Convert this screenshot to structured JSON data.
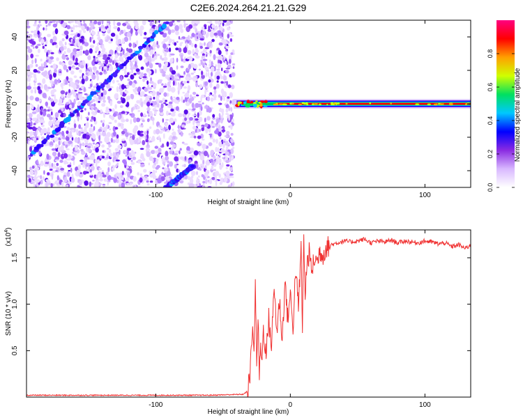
{
  "title": "C2E6.2024.264.21.21.G29",
  "colors": {
    "axis": "#000000",
    "snr_line": "#f03030",
    "spectrum_bg": "#ffffff"
  },
  "colorbar": {
    "label": "Normalized spectral amplitude",
    "ticks": [
      "0.0",
      "0.2",
      "0.4",
      "0.6",
      "0.8"
    ],
    "tick_values": [
      0.0,
      0.2,
      0.4,
      0.6,
      0.8
    ],
    "range": [
      0,
      1
    ],
    "colormap": [
      "#ffffff",
      "#d8b8ff",
      "#8a2be2",
      "#0000ff",
      "#00c8ff",
      "#00e060",
      "#d0ff00",
      "#ffa000",
      "#ff0000",
      "#ff0080"
    ]
  },
  "chart_data": [
    {
      "type": "heatmap",
      "title": "C2E6.2024.264.21.21.G29",
      "xlabel": "Height of straight line (km)",
      "ylabel": "Frequency (Hz)",
      "xlim": [
        -196,
        134
      ],
      "ylim": [
        -50,
        50
      ],
      "xticks": [
        -100,
        0,
        100
      ],
      "yticks": [
        -40,
        -20,
        0,
        20,
        40
      ],
      "features": {
        "noise_region_x": [
          -196,
          -42
        ],
        "diagonal_tracks": [
          {
            "x": [
              -192,
              -92
            ],
            "y": [
              -30,
              48
            ]
          },
          {
            "x": [
              -92,
              -72
            ],
            "y": [
              -50,
              -37
            ]
          }
        ],
        "carrier_band": {
          "x": [
            -42,
            134
          ],
          "y": 0
        }
      }
    },
    {
      "type": "line",
      "xlabel": "Height of straight line (km)",
      "ylabel": "SNR (10 * v/v)",
      "scale_label": "(x10",
      "scale_exponent": "4",
      "xlim": [
        -196,
        134
      ],
      "ylim": [
        0,
        1.8
      ],
      "xticks": [
        -100,
        0,
        100
      ],
      "yticks": [
        0.5,
        1.0,
        1.5
      ],
      "ytick_labels": [
        "0.5",
        "1.0",
        "1.5"
      ],
      "series": [
        {
          "x": [
            -196,
            -150,
            -100,
            -60,
            -35,
            -32,
            -30,
            -28,
            -27,
            -26,
            -25,
            -24,
            -23,
            -22,
            -21,
            -20,
            -18,
            -16,
            -14,
            -12,
            -10,
            -8,
            -6,
            -4,
            -2,
            0,
            2,
            4,
            6,
            8,
            9,
            10,
            11,
            12,
            14,
            16,
            18,
            20,
            22,
            24,
            26,
            28,
            30,
            35,
            40,
            45,
            50,
            55,
            60,
            65,
            70,
            75,
            80,
            85,
            90,
            95,
            100,
            105,
            110,
            115,
            120,
            125,
            130,
            134
          ],
          "y": [
            0.02,
            0.02,
            0.02,
            0.02,
            0.03,
            0.06,
            0.2,
            0.85,
            0.4,
            1.3,
            0.3,
            0.9,
            0.2,
            0.6,
            0.35,
            0.75,
            0.45,
            0.85,
            0.55,
            1.2,
            0.7,
            1.05,
            0.6,
            1.25,
            0.85,
            1.1,
            0.75,
            1.4,
            0.95,
            1.6,
            0.7,
            1.8,
            1.0,
            1.4,
            1.55,
            1.35,
            1.5,
            1.45,
            1.58,
            1.52,
            1.6,
            1.62,
            1.64,
            1.66,
            1.68,
            1.67,
            1.68,
            1.7,
            1.66,
            1.68,
            1.67,
            1.69,
            1.66,
            1.68,
            1.67,
            1.66,
            1.68,
            1.67,
            1.65,
            1.66,
            1.62,
            1.64,
            1.6,
            1.64
          ]
        }
      ]
    }
  ]
}
